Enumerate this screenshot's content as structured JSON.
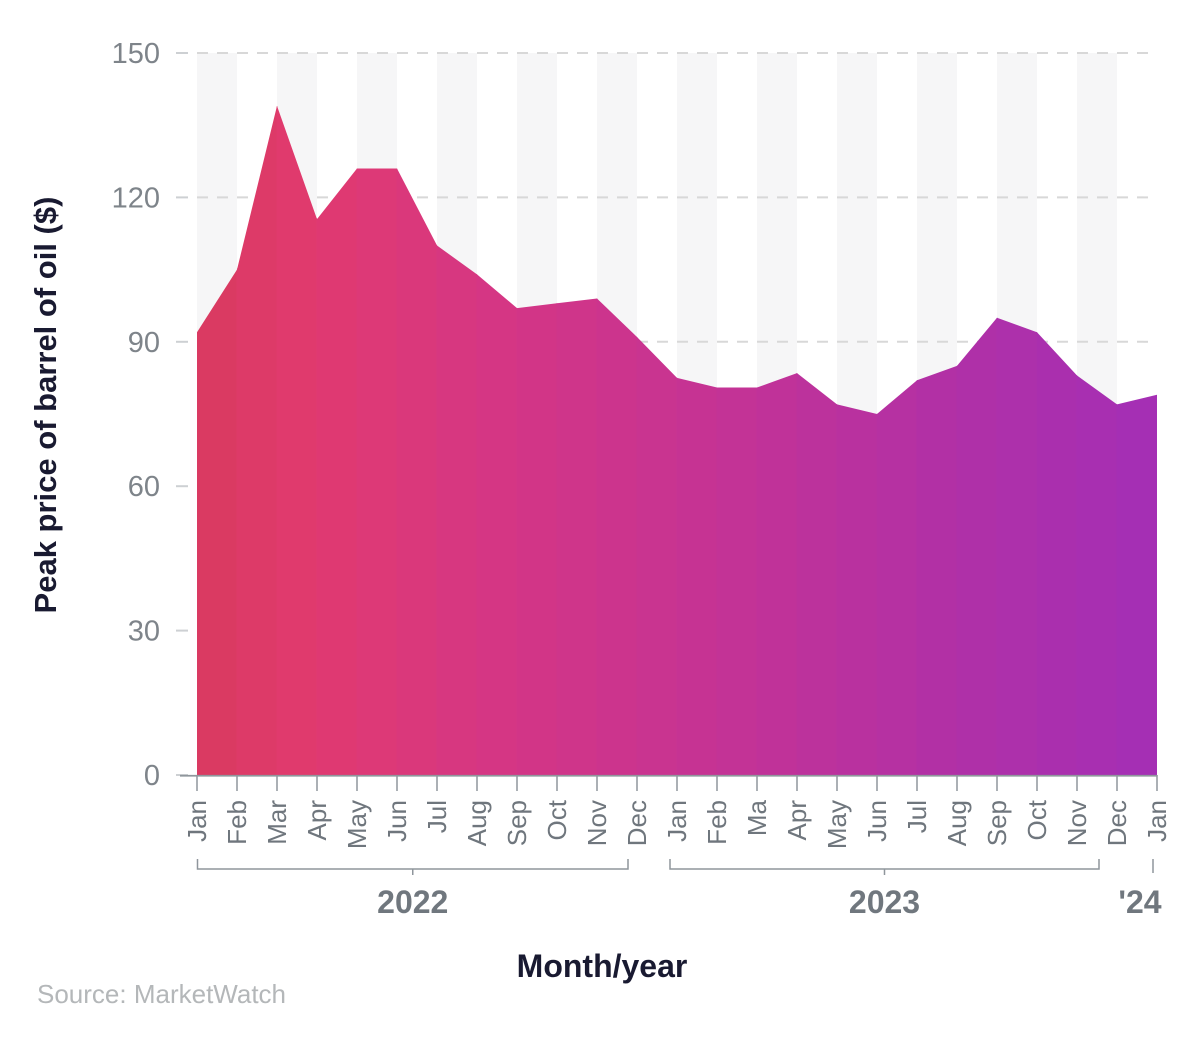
{
  "chart_data": {
    "type": "area",
    "title": "",
    "xlabel": "Month/year",
    "ylabel": "Peak price of barrel of oil ($)",
    "ylim": [
      0,
      150
    ],
    "yticks": [
      0,
      30,
      60,
      90,
      120,
      150
    ],
    "grid": "horizontal-dashed",
    "legend_position": "none",
    "background_bands": "alternating-monthly-vertical",
    "x": [
      "Jan 2022",
      "Feb 2022",
      "Mar 2022",
      "Apr 2022",
      "May 2022",
      "Jun 2022",
      "Jul 2022",
      "Aug 2022",
      "Sep 2022",
      "Oct 2022",
      "Nov 2022",
      "Dec 2022",
      "Jan 2023",
      "Feb 2023",
      "Mar 2023",
      "Apr 2023",
      "May 2023",
      "Jun 2023",
      "Jul 2023",
      "Aug 2023",
      "Sep 2023",
      "Oct 2023",
      "Nov 2023",
      "Dec 2023",
      "Jan 2024"
    ],
    "x_tick_labels": [
      "Jan",
      "Feb",
      "Mar",
      "Apr",
      "May",
      "Jun",
      "Jul",
      "Aug",
      "Sep",
      "Oct",
      "Nov",
      "Dec",
      "Jan",
      "Feb",
      "Ma",
      "Apr",
      "May",
      "Jun",
      "Jul",
      "Aug",
      "Sep",
      "Oct",
      "Nov",
      "Dec",
      "Jan"
    ],
    "values": [
      92,
      105,
      139,
      115.5,
      126,
      126,
      110,
      104,
      97,
      98,
      99,
      91,
      82.5,
      80.5,
      80.5,
      83.5,
      77,
      75,
      82,
      85,
      95,
      92,
      83,
      77,
      79
    ],
    "year_groups": [
      {
        "label": "2022",
        "from": 0,
        "to": 11
      },
      {
        "label": "2023",
        "from": 12,
        "to": 23
      },
      {
        "label": "'24",
        "from": 24,
        "to": 24
      }
    ]
  },
  "source": {
    "label": "Source: MarketWatch"
  },
  "colors": {
    "area_gradient": [
      {
        "t": 0.0,
        "color": "#da3a62"
      },
      {
        "t": 0.1,
        "color": "#e13a6f"
      },
      {
        "t": 0.3,
        "color": "#d53684"
      },
      {
        "t": 0.55,
        "color": "#c43395"
      },
      {
        "t": 0.8,
        "color": "#b130a6"
      },
      {
        "t": 1.0,
        "color": "#a52fb4"
      }
    ],
    "band_fill": "#f6f6f7",
    "grid_dash": "#d8d8d8",
    "mini_tick": "#cdd0d3",
    "axis_line": "#8f969c",
    "tick_text": "#7e848a",
    "month_text": "#6f767d",
    "year_text": "#70777e",
    "title_text": "#191a31",
    "source_text": "#b4b7b9"
  }
}
